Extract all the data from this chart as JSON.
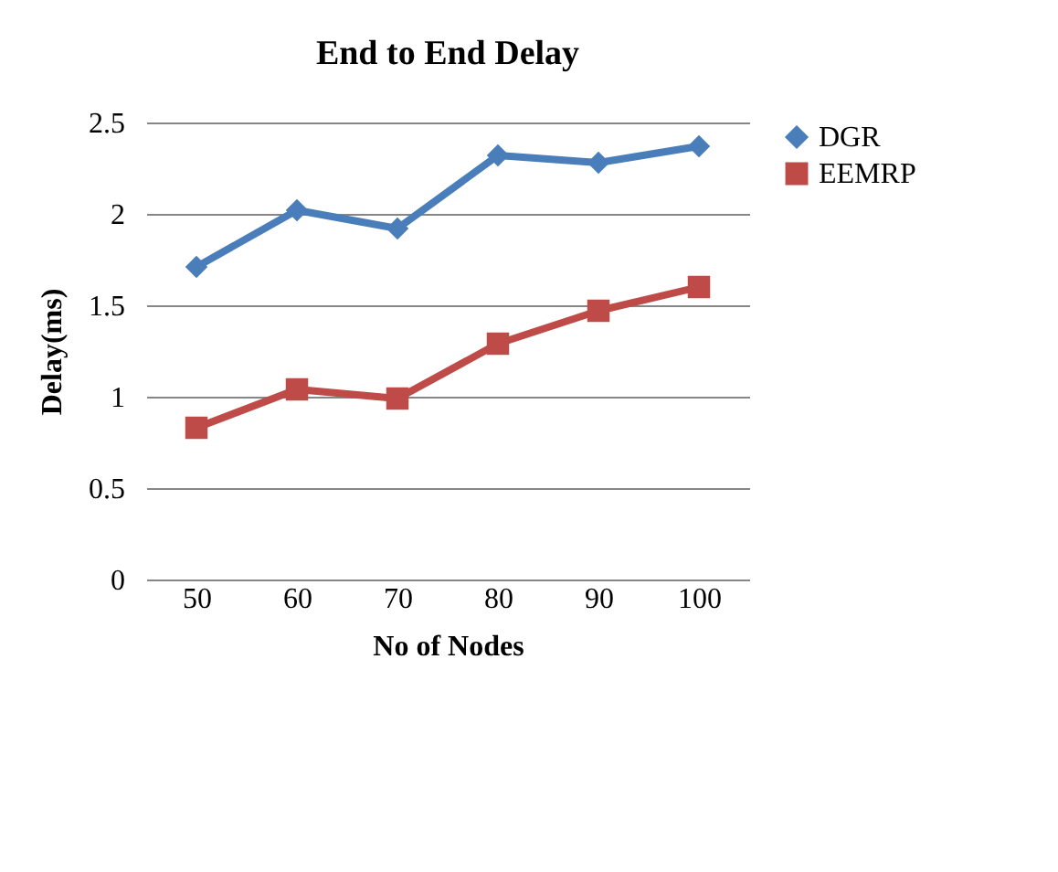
{
  "chart_data": {
    "type": "line",
    "title": "End to End Delay",
    "xlabel": "No of Nodes",
    "ylabel": "Delay(ms)",
    "categories": [
      "50",
      "60",
      "70",
      "80",
      "90",
      "100"
    ],
    "series": [
      {
        "name": "DGR",
        "color": "#4a7ebb",
        "marker": "diamond",
        "values": [
          1.71,
          2.02,
          1.92,
          2.32,
          2.28,
          2.37
        ]
      },
      {
        "name": "EEMRP",
        "color": "#be4b48",
        "marker": "square",
        "values": [
          0.83,
          1.04,
          0.99,
          1.29,
          1.47,
          1.6
        ]
      }
    ],
    "ylim": [
      0,
      2.5
    ],
    "yticks": [
      0,
      0.5,
      1,
      1.5,
      2,
      2.5
    ],
    "grid": "y",
    "legend": "right",
    "line_style": "solid"
  }
}
